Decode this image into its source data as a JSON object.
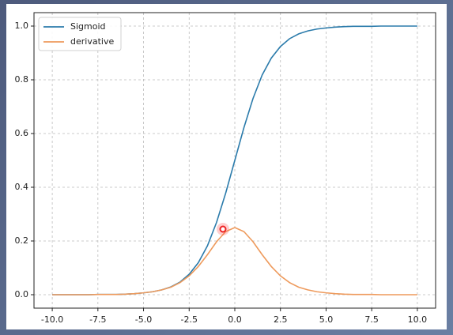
{
  "chart_data": {
    "type": "line",
    "x": [
      -10,
      -9.5,
      -9,
      -8.5,
      -8,
      -7.5,
      -7,
      -6.5,
      -6,
      -5.5,
      -5,
      -4.5,
      -4,
      -3.5,
      -3,
      -2.5,
      -2,
      -1.5,
      -1,
      -0.5,
      0,
      0.5,
      1,
      1.5,
      2,
      2.5,
      3,
      3.5,
      4,
      4.5,
      5,
      5.5,
      6,
      6.5,
      7,
      7.5,
      8,
      8.5,
      9,
      9.5,
      10
    ],
    "series": [
      {
        "name": "Sigmoid",
        "color": "#2b7bab",
        "values": [
          0,
          0,
          0,
          0,
          0,
          0.001,
          0.001,
          0.001,
          0.002,
          0.004,
          0.007,
          0.011,
          0.018,
          0.029,
          0.047,
          0.076,
          0.119,
          0.182,
          0.269,
          0.378,
          0.5,
          0.622,
          0.731,
          0.818,
          0.881,
          0.924,
          0.953,
          0.971,
          0.982,
          0.989,
          0.993,
          0.996,
          0.998,
          0.999,
          0.999,
          0.999,
          1,
          1,
          1,
          1,
          1
        ]
      },
      {
        "name": "derivative",
        "color": "#ee9a5c",
        "values": [
          0,
          0,
          0,
          0,
          0,
          0.001,
          0.001,
          0.001,
          0.002,
          0.004,
          0.007,
          0.011,
          0.018,
          0.028,
          0.045,
          0.07,
          0.105,
          0.149,
          0.197,
          0.235,
          0.25,
          0.235,
          0.197,
          0.149,
          0.105,
          0.07,
          0.045,
          0.028,
          0.018,
          0.011,
          0.007,
          0.004,
          0.002,
          0.001,
          0.001,
          0.001,
          0,
          0,
          0,
          0,
          0
        ]
      }
    ],
    "xlim": [
      -11,
      11
    ],
    "ylim": [
      -0.05,
      1.05
    ],
    "xticks": [
      {
        "value": -10,
        "label": "-10.0"
      },
      {
        "value": -7.5,
        "label": "-7.5"
      },
      {
        "value": -5,
        "label": "-5.0"
      },
      {
        "value": -2.5,
        "label": "-2.5"
      },
      {
        "value": 0,
        "label": "0.0"
      },
      {
        "value": 2.5,
        "label": "2.5"
      },
      {
        "value": 5,
        "label": "5.0"
      },
      {
        "value": 7.5,
        "label": "7.5"
      },
      {
        "value": 10,
        "label": "10.0"
      }
    ],
    "yticks": [
      {
        "value": 0,
        "label": "0.0"
      },
      {
        "value": 0.2,
        "label": "0.2"
      },
      {
        "value": 0.4,
        "label": "0.4"
      },
      {
        "value": 0.6,
        "label": "0.6"
      },
      {
        "value": 0.8,
        "label": "0.8"
      },
      {
        "value": 1,
        "label": "1.0"
      }
    ],
    "grid": true,
    "legend": "upper left"
  }
}
